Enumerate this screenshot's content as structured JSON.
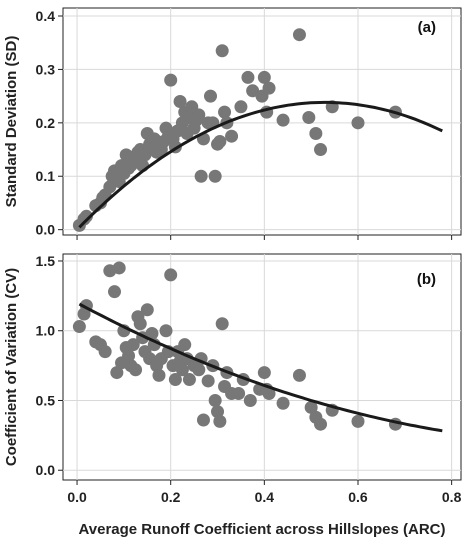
{
  "chart_data": [
    {
      "type": "scatter",
      "panel_label": "(a)",
      "ylabel": "Standard Deviation (SD)",
      "xlim": [
        -0.03,
        0.82
      ],
      "ylim": [
        -0.01,
        0.415
      ],
      "xticks": [
        0.0,
        0.2,
        0.4,
        0.6,
        0.8
      ],
      "xtick_labels": [
        "0.0",
        "0.2",
        "0.4",
        "0.6",
        "0.8"
      ],
      "yticks": [
        0.0,
        0.1,
        0.2,
        0.3,
        0.4
      ],
      "ytick_labels": [
        "0.0",
        "0.1",
        "0.2",
        "0.3",
        "0.4"
      ],
      "grid": true,
      "point_color": "#777777",
      "curve_color": "#1a1a1a",
      "points": [
        [
          0.005,
          0.008
        ],
        [
          0.015,
          0.02
        ],
        [
          0.02,
          0.025
        ],
        [
          0.04,
          0.045
        ],
        [
          0.05,
          0.05
        ],
        [
          0.055,
          0.06
        ],
        [
          0.06,
          0.065
        ],
        [
          0.07,
          0.08
        ],
        [
          0.075,
          0.1
        ],
        [
          0.08,
          0.11
        ],
        [
          0.085,
          0.1
        ],
        [
          0.09,
          0.09
        ],
        [
          0.095,
          0.12
        ],
        [
          0.1,
          0.105
        ],
        [
          0.105,
          0.14
        ],
        [
          0.11,
          0.115
        ],
        [
          0.115,
          0.12
        ],
        [
          0.12,
          0.125
        ],
        [
          0.125,
          0.13
        ],
        [
          0.13,
          0.145
        ],
        [
          0.135,
          0.15
        ],
        [
          0.14,
          0.12
        ],
        [
          0.145,
          0.14
        ],
        [
          0.15,
          0.18
        ],
        [
          0.155,
          0.16
        ],
        [
          0.16,
          0.155
        ],
        [
          0.165,
          0.17
        ],
        [
          0.17,
          0.145
        ],
        [
          0.175,
          0.16
        ],
        [
          0.18,
          0.15
        ],
        [
          0.185,
          0.165
        ],
        [
          0.19,
          0.19
        ],
        [
          0.195,
          0.175
        ],
        [
          0.2,
          0.28
        ],
        [
          0.205,
          0.17
        ],
        [
          0.21,
          0.155
        ],
        [
          0.215,
          0.185
        ],
        [
          0.22,
          0.24
        ],
        [
          0.225,
          0.2
        ],
        [
          0.23,
          0.22
        ],
        [
          0.235,
          0.18
        ],
        [
          0.24,
          0.21
        ],
        [
          0.245,
          0.23
        ],
        [
          0.25,
          0.19
        ],
        [
          0.255,
          0.205
        ],
        [
          0.26,
          0.215
        ],
        [
          0.265,
          0.1
        ],
        [
          0.27,
          0.17
        ],
        [
          0.28,
          0.2
        ],
        [
          0.285,
          0.25
        ],
        [
          0.29,
          0.2
        ],
        [
          0.295,
          0.1
        ],
        [
          0.3,
          0.16
        ],
        [
          0.305,
          0.165
        ],
        [
          0.31,
          0.335
        ],
        [
          0.315,
          0.22
        ],
        [
          0.32,
          0.2
        ],
        [
          0.33,
          0.175
        ],
        [
          0.35,
          0.23
        ],
        [
          0.365,
          0.285
        ],
        [
          0.375,
          0.26
        ],
        [
          0.395,
          0.25
        ],
        [
          0.4,
          0.285
        ],
        [
          0.405,
          0.22
        ],
        [
          0.41,
          0.265
        ],
        [
          0.44,
          0.205
        ],
        [
          0.475,
          0.365
        ],
        [
          0.495,
          0.21
        ],
        [
          0.51,
          0.18
        ],
        [
          0.52,
          0.15
        ],
        [
          0.545,
          0.23
        ],
        [
          0.6,
          0.2
        ],
        [
          0.68,
          0.22
        ]
      ],
      "curve_fit": {
        "coefficients_ascending": [
          0.0,
          0.9,
          -0.85
        ]
      }
    },
    {
      "type": "scatter",
      "panel_label": "(b)",
      "ylabel": "Coefficient of Variation (CV)",
      "xlabel": "Average Runoff Coefficient across Hillslopes (ARC)",
      "xlim": [
        -0.03,
        0.82
      ],
      "ylim": [
        -0.07,
        1.55
      ],
      "xticks": [
        0.0,
        0.2,
        0.4,
        0.6,
        0.8
      ],
      "xtick_labels": [
        "0.0",
        "0.2",
        "0.4",
        "0.6",
        "0.8"
      ],
      "yticks": [
        0.0,
        0.5,
        1.0,
        1.5
      ],
      "ytick_labels": [
        "0.0",
        "0.5",
        "1.0",
        "1.5"
      ],
      "grid": true,
      "point_color": "#777777",
      "curve_color": "#1a1a1a",
      "points": [
        [
          0.005,
          1.03
        ],
        [
          0.015,
          1.12
        ],
        [
          0.02,
          1.18
        ],
        [
          0.04,
          0.92
        ],
        [
          0.05,
          0.9
        ],
        [
          0.06,
          0.85
        ],
        [
          0.07,
          1.43
        ],
        [
          0.08,
          1.28
        ],
        [
          0.085,
          0.7
        ],
        [
          0.09,
          1.45
        ],
        [
          0.095,
          0.77
        ],
        [
          0.1,
          1.0
        ],
        [
          0.105,
          0.88
        ],
        [
          0.11,
          0.82
        ],
        [
          0.115,
          0.75
        ],
        [
          0.12,
          0.9
        ],
        [
          0.125,
          0.72
        ],
        [
          0.13,
          1.1
        ],
        [
          0.135,
          1.05
        ],
        [
          0.14,
          0.95
        ],
        [
          0.145,
          0.85
        ],
        [
          0.15,
          1.15
        ],
        [
          0.155,
          0.8
        ],
        [
          0.16,
          0.98
        ],
        [
          0.165,
          0.9
        ],
        [
          0.17,
          0.75
        ],
        [
          0.175,
          0.68
        ],
        [
          0.18,
          0.8
        ],
        [
          0.19,
          1.0
        ],
        [
          0.195,
          0.85
        ],
        [
          0.2,
          1.4
        ],
        [
          0.205,
          0.75
        ],
        [
          0.21,
          0.65
        ],
        [
          0.215,
          0.85
        ],
        [
          0.22,
          0.78
        ],
        [
          0.225,
          0.72
        ],
        [
          0.23,
          0.9
        ],
        [
          0.235,
          0.8
        ],
        [
          0.24,
          0.65
        ],
        [
          0.25,
          0.75
        ],
        [
          0.26,
          0.72
        ],
        [
          0.265,
          0.8
        ],
        [
          0.27,
          0.36
        ],
        [
          0.28,
          0.64
        ],
        [
          0.29,
          0.75
        ],
        [
          0.295,
          0.5
        ],
        [
          0.3,
          0.42
        ],
        [
          0.305,
          0.35
        ],
        [
          0.31,
          1.05
        ],
        [
          0.315,
          0.6
        ],
        [
          0.32,
          0.7
        ],
        [
          0.33,
          0.55
        ],
        [
          0.345,
          0.55
        ],
        [
          0.355,
          0.65
        ],
        [
          0.37,
          0.5
        ],
        [
          0.39,
          0.58
        ],
        [
          0.4,
          0.7
        ],
        [
          0.405,
          0.58
        ],
        [
          0.41,
          0.55
        ],
        [
          0.44,
          0.48
        ],
        [
          0.475,
          0.68
        ],
        [
          0.5,
          0.45
        ],
        [
          0.51,
          0.38
        ],
        [
          0.52,
          0.33
        ],
        [
          0.545,
          0.43
        ],
        [
          0.6,
          0.35
        ],
        [
          0.68,
          0.33
        ]
      ],
      "curve_fit": {
        "coefficients_ascending": [
          1.2,
          -1.8,
          0.8
        ]
      }
    }
  ]
}
